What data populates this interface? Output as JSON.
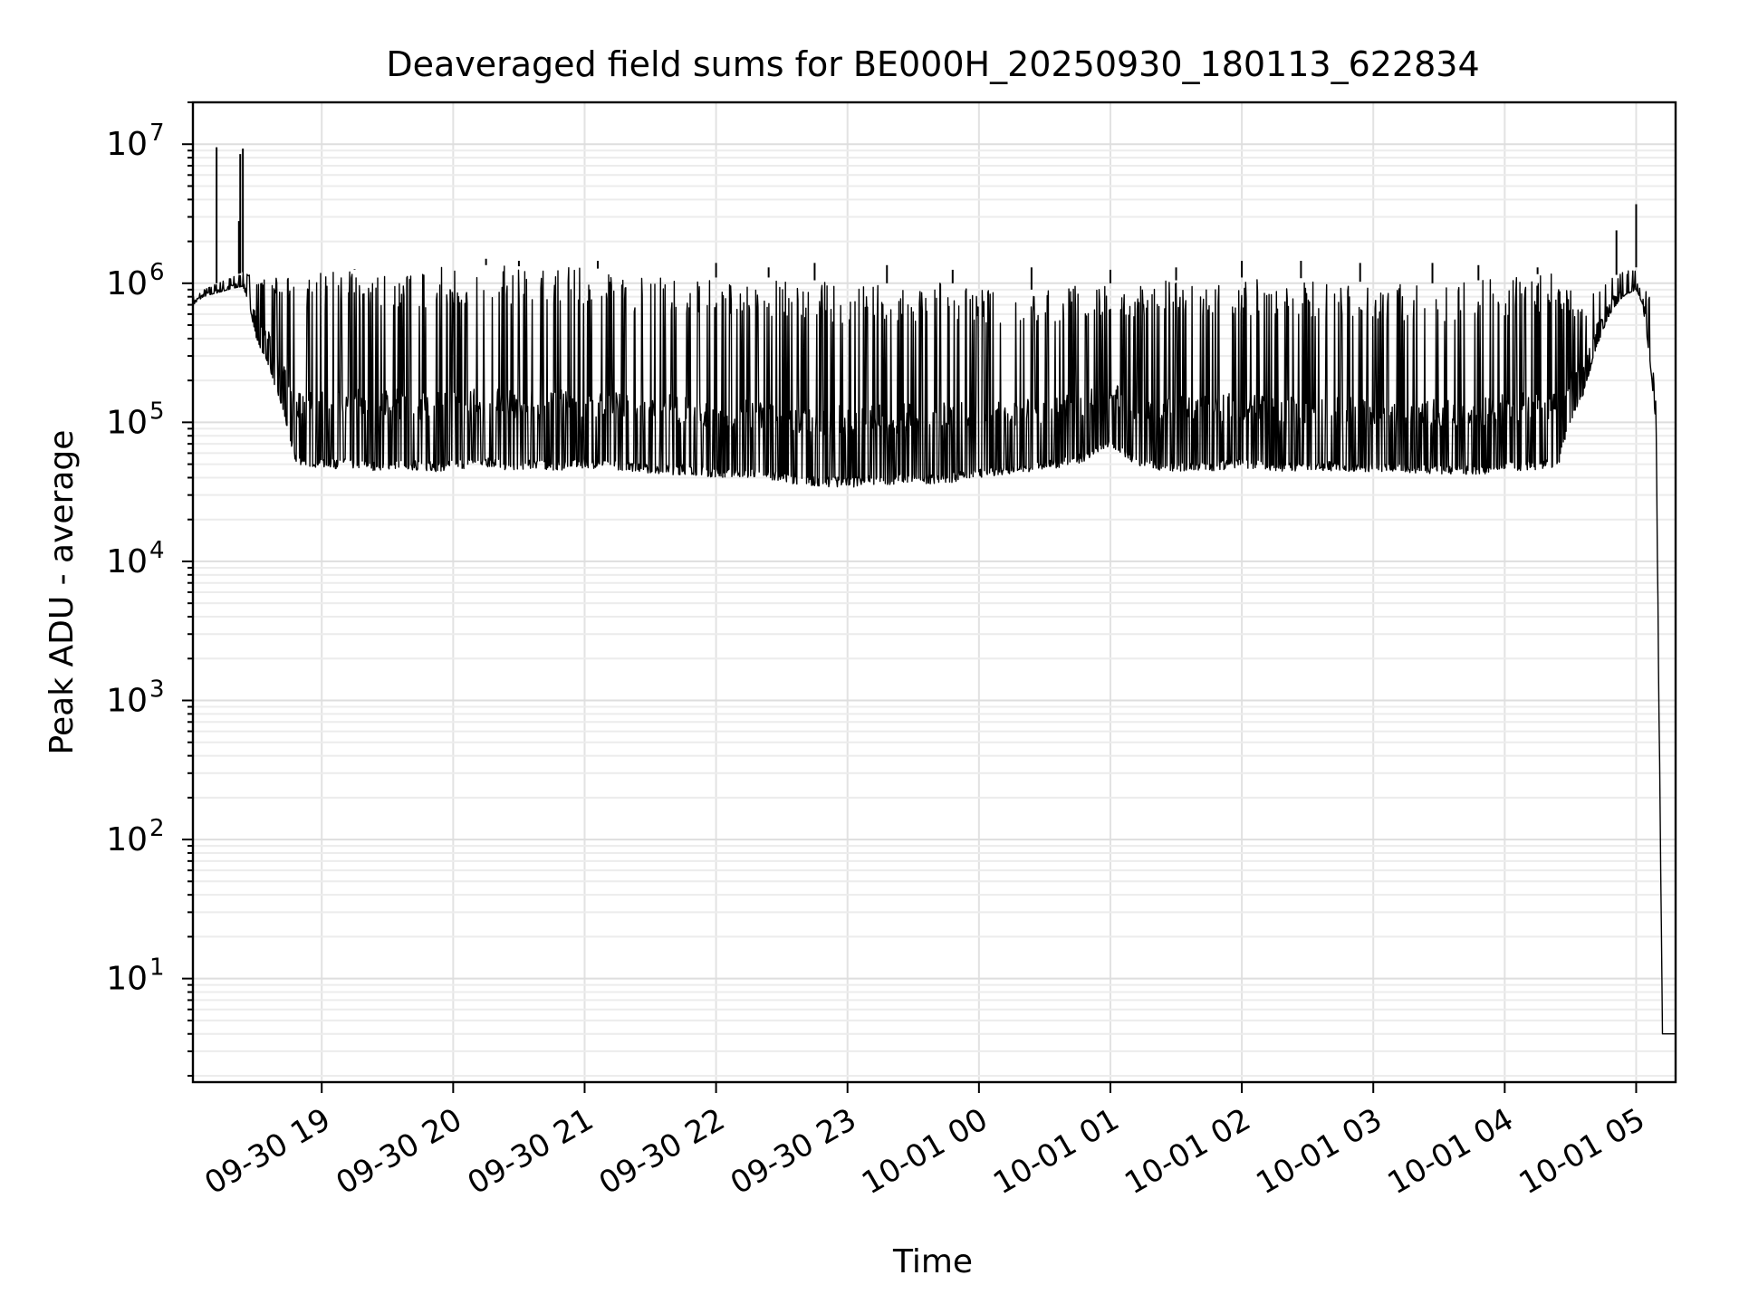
{
  "chart_data": {
    "type": "line",
    "title": "Deaveraged field sums for BE000H_20250930_180113_622834",
    "xlabel": "Time",
    "ylabel": "Peak ADU - average",
    "yscale": "log",
    "ylim": [
      1.8,
      20000000
    ],
    "xlim_hours": [
      18.02,
      29.3
    ],
    "grid": true,
    "x_ticks": [
      {
        "hour": 19,
        "label": "09-30 19"
      },
      {
        "hour": 20,
        "label": "09-30 20"
      },
      {
        "hour": 21,
        "label": "09-30 21"
      },
      {
        "hour": 22,
        "label": "09-30 22"
      },
      {
        "hour": 23,
        "label": "09-30 23"
      },
      {
        "hour": 24,
        "label": "10-01 00"
      },
      {
        "hour": 25,
        "label": "10-01 01"
      },
      {
        "hour": 26,
        "label": "10-01 02"
      },
      {
        "hour": 27,
        "label": "10-01 03"
      },
      {
        "hour": 28,
        "label": "10-01 04"
      },
      {
        "hour": 29,
        "label": "10-01 05"
      }
    ],
    "y_ticks": [
      {
        "value": 10,
        "base": "10",
        "exp": "1"
      },
      {
        "value": 100,
        "base": "10",
        "exp": "2"
      },
      {
        "value": 1000,
        "base": "10",
        "exp": "3"
      },
      {
        "value": 10000,
        "base": "10",
        "exp": "4"
      },
      {
        "value": 100000,
        "base": "10",
        "exp": "5"
      },
      {
        "value": 1000000,
        "base": "10",
        "exp": "6"
      },
      {
        "value": 10000000,
        "base": "10",
        "exp": "7"
      }
    ],
    "series": [
      {
        "name": "field sums",
        "color": "#000000",
        "x_hours": [
          18.02,
          18.1,
          18.2,
          18.3,
          18.4,
          18.45,
          18.5,
          18.6,
          18.7,
          18.8,
          18.9,
          19.0,
          19.2,
          19.4,
          19.6,
          19.8,
          20.0,
          20.2,
          20.4,
          20.6,
          20.8,
          21.0,
          21.2,
          21.4,
          21.6,
          21.8,
          22.0,
          22.2,
          22.4,
          22.6,
          22.8,
          23.0,
          23.2,
          23.4,
          23.6,
          23.8,
          24.0,
          24.2,
          24.4,
          24.6,
          24.8,
          25.0,
          25.2,
          25.4,
          25.6,
          25.8,
          26.0,
          26.2,
          26.4,
          26.6,
          26.8,
          27.0,
          27.2,
          27.4,
          27.6,
          27.8,
          28.0,
          28.2,
          28.4,
          28.5,
          28.6,
          28.7,
          28.8,
          28.9,
          29.0,
          29.05,
          29.1,
          29.15,
          29.2,
          29.25,
          29.3
        ],
        "low": [
          700000,
          800000,
          850000,
          900000,
          950000,
          700000,
          400000,
          250000,
          120000,
          50000,
          48000,
          47000,
          46000,
          45000,
          46000,
          44000,
          45000,
          48000,
          45000,
          46000,
          45000,
          47000,
          46000,
          44000,
          42000,
          42000,
          40000,
          40000,
          39000,
          36000,
          34000,
          34000,
          35000,
          36000,
          36000,
          37000,
          40000,
          42000,
          44000,
          47000,
          52000,
          65000,
          48000,
          45000,
          44000,
          45000,
          47000,
          45000,
          44000,
          45000,
          44000,
          44000,
          43000,
          43000,
          42000,
          42000,
          44000,
          45000,
          46000,
          100000,
          160000,
          350000,
          600000,
          800000,
          900000,
          700000,
          300000,
          100000,
          4,
          4,
          4
        ],
        "high": [
          800000,
          900000,
          1000000,
          1100000,
          1200000,
          1200000,
          1100000,
          1100000,
          1100000,
          1100000,
          1200000,
          1200000,
          1250000,
          1300000,
          1300000,
          1300000,
          1350000,
          1350000,
          1350000,
          1300000,
          1300000,
          1300000,
          1250000,
          1200000,
          1200000,
          1150000,
          1100000,
          1100000,
          1100000,
          1050000,
          1050000,
          1000000,
          1000000,
          1000000,
          1000000,
          1000000,
          950000,
          900000,
          900000,
          950000,
          1000000,
          1000000,
          1000000,
          1050000,
          1050000,
          1100000,
          1100000,
          1100000,
          1100000,
          1050000,
          1050000,
          1000000,
          1000000,
          1000000,
          1000000,
          1050000,
          1100000,
          1150000,
          1200000,
          900000,
          700000,
          900000,
          1100000,
          1200000,
          1300000,
          1100000,
          800000,
          300000,
          4,
          4,
          4
        ],
        "spikes": [
          {
            "hour": 18.2,
            "value": 9500000
          },
          {
            "hour": 18.37,
            "value": 2800000
          },
          {
            "hour": 18.38,
            "value": 8500000
          },
          {
            "hour": 18.4,
            "value": 9300000
          },
          {
            "hour": 19.25,
            "value": 1250000
          },
          {
            "hour": 20.25,
            "value": 1500000
          },
          {
            "hour": 20.5,
            "value": 1450000
          },
          {
            "hour": 21.1,
            "value": 1450000
          },
          {
            "hour": 22.0,
            "value": 1400000
          },
          {
            "hour": 22.4,
            "value": 1300000
          },
          {
            "hour": 22.75,
            "value": 1400000
          },
          {
            "hour": 23.3,
            "value": 1350000
          },
          {
            "hour": 23.8,
            "value": 1250000
          },
          {
            "hour": 24.4,
            "value": 1300000
          },
          {
            "hour": 25.0,
            "value": 1250000
          },
          {
            "hour": 25.5,
            "value": 1300000
          },
          {
            "hour": 26.0,
            "value": 1450000
          },
          {
            "hour": 26.45,
            "value": 1450000
          },
          {
            "hour": 26.9,
            "value": 1400000
          },
          {
            "hour": 27.45,
            "value": 1400000
          },
          {
            "hour": 27.8,
            "value": 1350000
          },
          {
            "hour": 28.25,
            "value": 1300000
          },
          {
            "hour": 28.85,
            "value": 2400000
          },
          {
            "hour": 29.0,
            "value": 3700000
          }
        ]
      }
    ]
  }
}
